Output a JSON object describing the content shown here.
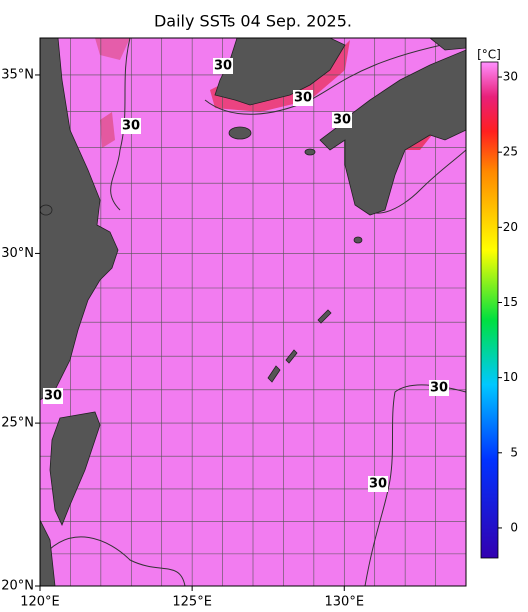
{
  "title": "Daily SSTs 04 Sep. 2025.",
  "map": {
    "lonlim": [
      120,
      134
    ],
    "latlim": [
      20,
      36
    ],
    "lon_grid": [
      120,
      121,
      122,
      123,
      124,
      125,
      126,
      127,
      128,
      129,
      130,
      131,
      132,
      133,
      134
    ],
    "lat_grid": [
      20,
      21,
      22,
      23,
      24,
      25,
      26,
      27,
      28,
      29,
      30,
      31,
      32,
      33,
      34,
      35,
      36
    ],
    "lon_ticks": [
      {
        "value": 120,
        "label": "120°E"
      },
      {
        "value": 125,
        "label": "125°E"
      },
      {
        "value": 130,
        "label": "130°E"
      }
    ],
    "lat_ticks": [
      {
        "value": 20,
        "label": "20°N"
      },
      {
        "value": 25,
        "label": "25°N"
      },
      {
        "value": 30,
        "label": "30°N"
      },
      {
        "value": 35,
        "label": "35°N"
      }
    ],
    "contour_labels": [
      "30",
      "30",
      "30",
      "30",
      "30",
      "30",
      "30"
    ]
  },
  "colorbar": {
    "unit": "[°C]",
    "lim": [
      -2,
      31
    ],
    "ticks": [
      0,
      5,
      10,
      15,
      20,
      25,
      30
    ]
  }
}
